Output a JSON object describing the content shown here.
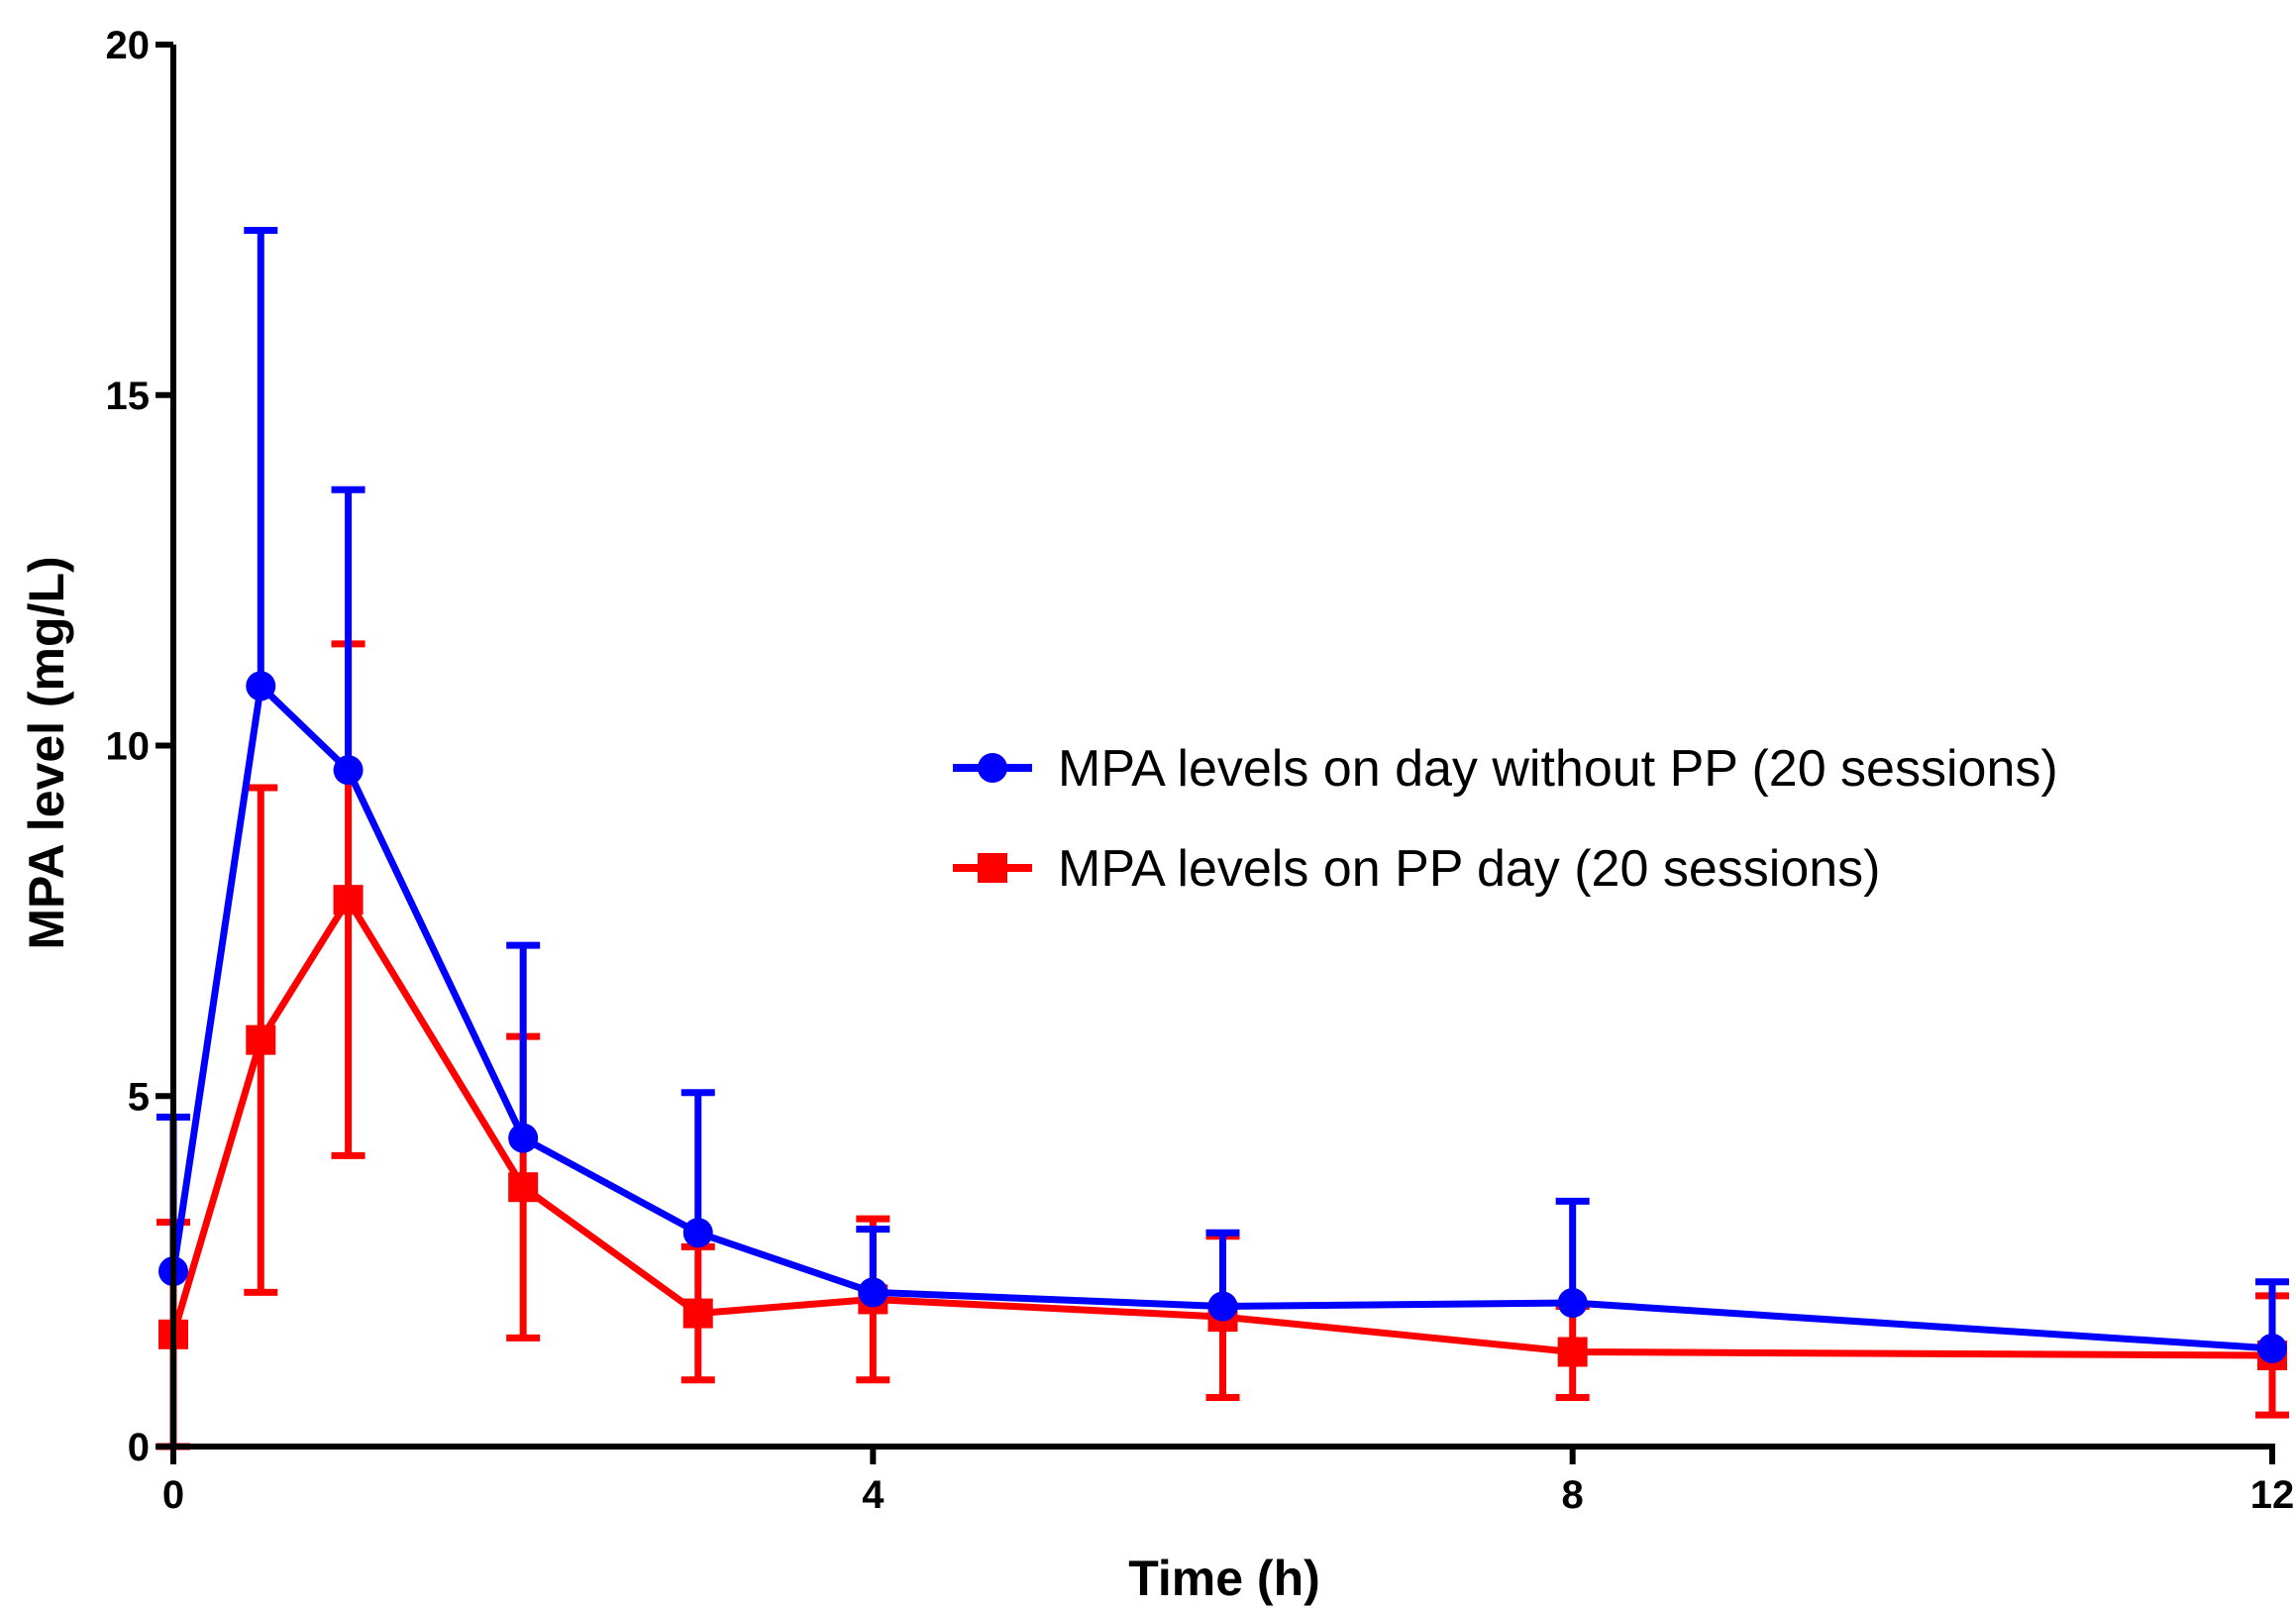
{
  "chart_data": {
    "type": "line",
    "title": "",
    "xlabel": "Time (h)",
    "ylabel": "MPA level (mg/L)",
    "xlim": [
      0,
      12
    ],
    "ylim": [
      0,
      20
    ],
    "xticks": [
      0,
      4,
      8,
      12
    ],
    "xtick_labels": [
      "0",
      "4",
      "8",
      "12"
    ],
    "yticks": [
      0,
      5,
      10,
      15,
      20
    ],
    "ytick_labels": [
      "0",
      "5",
      "10",
      "15",
      "20"
    ],
    "grid": false,
    "legend_position": "center-right",
    "series": [
      {
        "name": "MPA levels on day without PP (20 sessions)",
        "color": "#0000ff",
        "marker": "circle",
        "error_direction": "up",
        "x": [
          0,
          0.5,
          1,
          2,
          3,
          4,
          6,
          8,
          12
        ],
        "y": [
          2.5,
          10.85,
          9.65,
          4.4,
          3.05,
          2.2,
          2.0,
          2.05,
          1.4
        ],
        "error": [
          2.2,
          6.5,
          4.0,
          2.75,
          2.0,
          0.9,
          1.05,
          1.45,
          0.95
        ]
      },
      {
        "name": "MPA levels on PP day (20 sessions)",
        "color": "#ff0000",
        "marker": "square",
        "error_direction": "both",
        "x": [
          0,
          0.5,
          1,
          2,
          3,
          4,
          6,
          8,
          12
        ],
        "y": [
          1.6,
          5.8,
          7.8,
          3.7,
          1.9,
          2.1,
          1.85,
          1.35,
          1.3
        ],
        "error": [
          1.6,
          3.6,
          3.65,
          2.15,
          0.95,
          1.15,
          1.15,
          0.65,
          0.85
        ]
      }
    ]
  }
}
